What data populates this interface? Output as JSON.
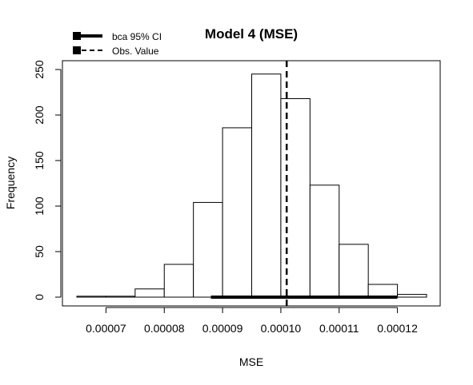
{
  "chart_data": {
    "type": "bar",
    "title": "Model 4 (MSE)",
    "xlabel": "MSE",
    "ylabel": "Frequency",
    "xlim": [
      6.5e-05,
      0.000125
    ],
    "ylim": [
      0,
      250
    ],
    "x_ticks": [
      7e-05,
      8e-05,
      9e-05,
      0.0001,
      0.00011,
      0.00012
    ],
    "x_tick_labels": [
      "0.00007",
      "0.00008",
      "0.00009",
      "0.00010",
      "0.00011",
      "0.00012"
    ],
    "y_ticks": [
      0,
      50,
      100,
      150,
      200,
      250
    ],
    "y_tick_labels": [
      "0",
      "50",
      "100",
      "150",
      "200",
      "250"
    ],
    "bins": [
      {
        "x0": 6.5e-05,
        "x1": 7e-05,
        "count": 1
      },
      {
        "x0": 7e-05,
        "x1": 7.5e-05,
        "count": 1
      },
      {
        "x0": 7.5e-05,
        "x1": 8e-05,
        "count": 9
      },
      {
        "x0": 8e-05,
        "x1": 8.5e-05,
        "count": 36
      },
      {
        "x0": 8.5e-05,
        "x1": 9e-05,
        "count": 104
      },
      {
        "x0": 9e-05,
        "x1": 9.5e-05,
        "count": 186
      },
      {
        "x0": 9.5e-05,
        "x1": 0.0001,
        "count": 245
      },
      {
        "x0": 0.0001,
        "x1": 0.000105,
        "count": 218
      },
      {
        "x0": 0.000105,
        "x1": 0.00011,
        "count": 123
      },
      {
        "x0": 0.00011,
        "x1": 0.000115,
        "count": 58
      },
      {
        "x0": 0.000115,
        "x1": 0.00012,
        "count": 14
      },
      {
        "x0": 0.00012,
        "x1": 0.000125,
        "count": 3
      }
    ],
    "ci_interval": [
      8.8e-05,
      0.00012
    ],
    "observed_value": 0.000101,
    "legend": {
      "position": "top-left",
      "entries": [
        {
          "label": "bca 95% CI",
          "style": "solid"
        },
        {
          "label": "Obs. Value",
          "style": "dashed"
        }
      ]
    },
    "grid": false
  }
}
